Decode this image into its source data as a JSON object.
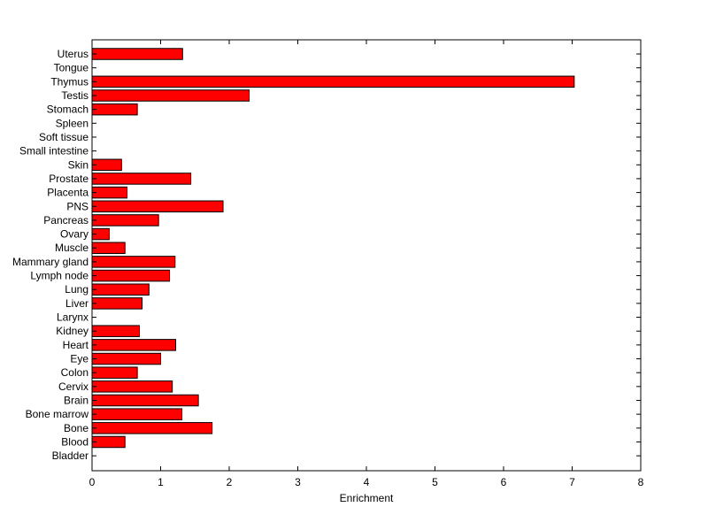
{
  "chart_data": {
    "type": "bar",
    "orientation": "horizontal",
    "categories": [
      "Uterus",
      "Tongue",
      "Thymus",
      "Testis",
      "Stomach",
      "Spleen",
      "Soft tissue",
      "Small intestine",
      "Skin",
      "Prostate",
      "Placenta",
      "PNS",
      "Pancreas",
      "Ovary",
      "Muscle",
      "Mammary gland",
      "Lymph node",
      "Lung",
      "Liver",
      "Larynx",
      "Kidney",
      "Heart",
      "Eye",
      "Colon",
      "Cervix",
      "Brain",
      "Bone marrow",
      "Bone",
      "Blood",
      "Bladder"
    ],
    "values": [
      1.32,
      0,
      7.03,
      2.29,
      0.66,
      0,
      0,
      0,
      0.43,
      1.44,
      0.51,
      1.91,
      0.97,
      0.25,
      0.48,
      1.21,
      1.13,
      0.83,
      0.73,
      0,
      0.69,
      1.22,
      1.0,
      0.66,
      1.17,
      1.55,
      1.31,
      1.75,
      0.48,
      0
    ],
    "xlabel": "Enrichment",
    "ylabel": "",
    "title": "",
    "xlim": [
      0,
      8
    ],
    "xticks": [
      0,
      1,
      2,
      3,
      4,
      5,
      6,
      7,
      8
    ],
    "grid": false,
    "legend": "none",
    "bar_color": "#ff0000",
    "edge_color": "#000000"
  }
}
